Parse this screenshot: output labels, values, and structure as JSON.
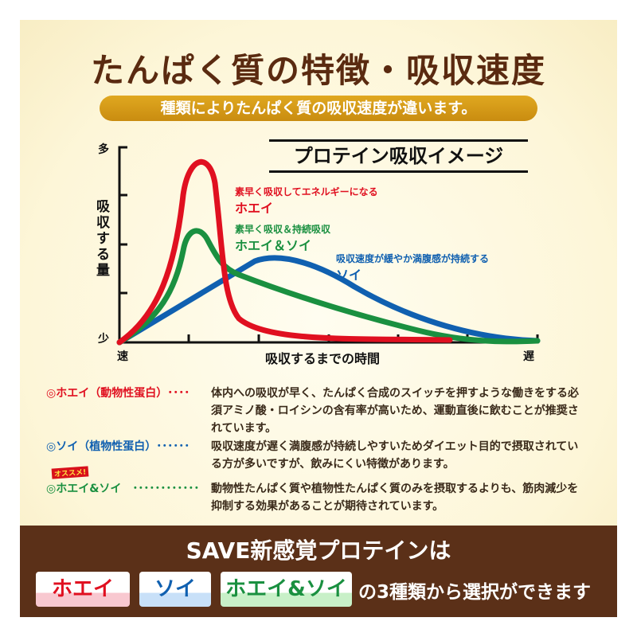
{
  "title": "たんぱく質の特徴・吸収速度",
  "subtitle": "種類によりたんぱく質の吸収速度が違います。",
  "chart": {
    "heading": "プロテイン吸収イメージ",
    "y_top": "多",
    "y_bottom": "少",
    "y_label": "吸収する量",
    "x_left": "速",
    "x_right": "遅",
    "x_label": "吸収するまでの時間",
    "whey_note": "素早く吸収してエネルギーになる",
    "whey_name": "ホエイ",
    "mix_note": "素早く吸収＆持続吸収",
    "mix_name": "ホエイ＆ソイ",
    "soy_note": "吸収速度が緩やか満腹感が持続する",
    "soy_name": "ソイ",
    "colors": {
      "whey": "#e01020",
      "mix": "#1a9040",
      "soy": "#1060b0"
    }
  },
  "descriptions": [
    {
      "name": "◎ホエイ（動物性蛋白）････",
      "text": "体内への吸収が早く、たんぱく合成のスイッチを押すような働きをする必須アミノ酸・ロイシンの含有率が高いため、運動直後に飲むことが推奨されています。"
    },
    {
      "name": "◎ソイ（植物性蛋白）･･････",
      "text": "吸収速度が遅く満腹感が持続しやすいためダイエット目的で摂取されている方が多いですが、飲みにくい特徴があります。"
    },
    {
      "name": "◎ホエイ&ソイ　････････････",
      "text": "動物性たんぱく質や植物性たんぱく質のみを摂取するよりも、筋肉減少を抑制する効果があることが期待されています。",
      "tag": "オススメ!"
    }
  ],
  "bottom": {
    "title": "SAVE新感覚プロテインは",
    "badges": [
      "ホエイ",
      "ソイ",
      "ホエイ&ソイ"
    ],
    "suffix": "の3種類から選択ができます"
  }
}
